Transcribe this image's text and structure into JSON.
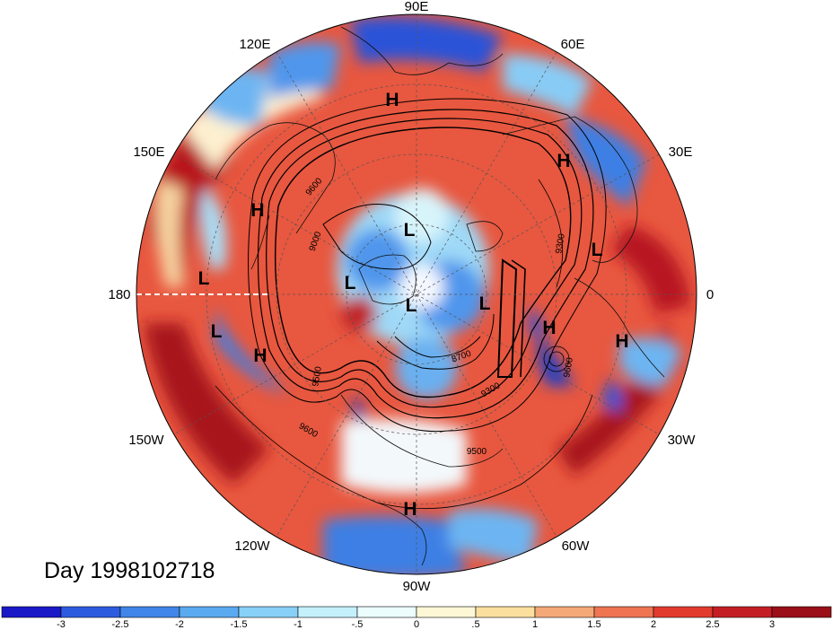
{
  "title": "Day 1998102718",
  "lon_labels": [
    {
      "text": "90E",
      "lon": 90
    },
    {
      "text": "60E",
      "lon": 60
    },
    {
      "text": "30E",
      "lon": 30
    },
    {
      "text": "0",
      "lon": 0
    },
    {
      "text": "30W",
      "lon": -30
    },
    {
      "text": "60W",
      "lon": -60
    },
    {
      "text": "90W",
      "lon": -90
    },
    {
      "text": "120W",
      "lon": -120
    },
    {
      "text": "150W",
      "lon": -150
    },
    {
      "text": "180",
      "lon": 180
    },
    {
      "text": "150E",
      "lon": 150
    },
    {
      "text": "120E",
      "lon": 120
    }
  ],
  "pressure_centers": [
    "H",
    "H",
    "H",
    "H",
    "L",
    "L",
    "L",
    "L",
    "L",
    "L",
    "L",
    "H",
    "H",
    "H"
  ],
  "contour_labels": [
    "9600",
    "9000",
    "9300",
    "8700",
    "9300",
    "9500",
    "9600",
    "9600",
    "9500"
  ],
  "colorbar": {
    "ticks": [
      "-3",
      "-2.5",
      "-2",
      "-1.5",
      "-1",
      "-.5",
      "0",
      ".5",
      "1",
      "1.5",
      "2",
      "2.5",
      "3"
    ],
    "colors": [
      "#1a19c8",
      "#2d5be0",
      "#3f86e8",
      "#5aaaf0",
      "#88d0f8",
      "#c4f0fc",
      "#ecfdfd",
      "#fdf7d6",
      "#fbdf9e",
      "#f4a877",
      "#ee7452",
      "#e23a2d",
      "#c41e24",
      "#9a0f18"
    ]
  }
}
